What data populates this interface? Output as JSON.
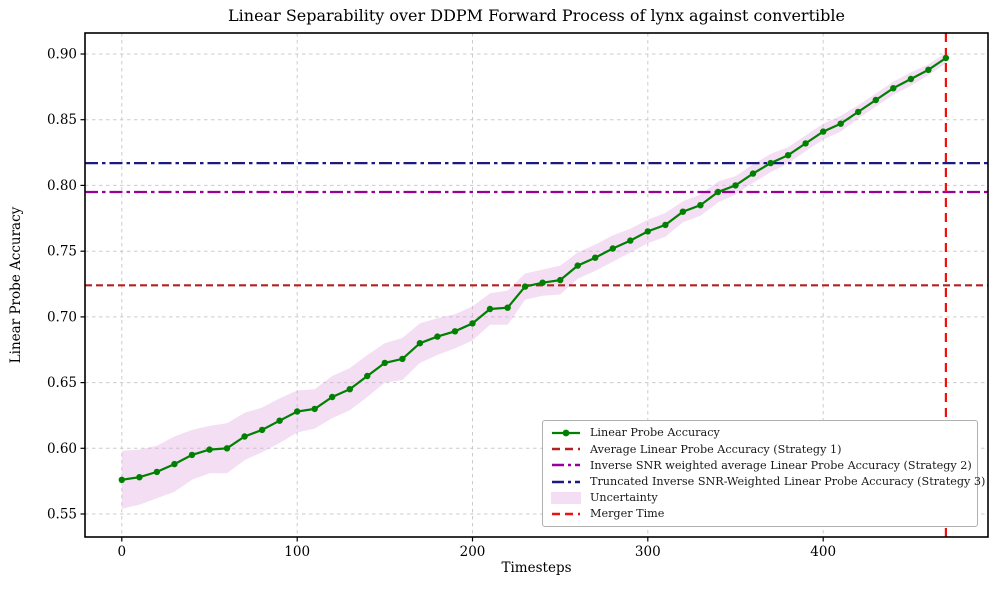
{
  "figure": {
    "title": "Linear Separability over DDPM Forward Process of lynx against convertible"
  },
  "axes": {
    "xlabel": "Timesteps",
    "ylabel": "Linear Probe Accuracy",
    "x_ticks": [
      "0",
      "100",
      "200",
      "300",
      "400"
    ],
    "y_ticks": [
      "0.55",
      "0.60",
      "0.65",
      "0.70",
      "0.75",
      "0.80",
      "0.85",
      "0.90"
    ]
  },
  "colors": {
    "accuracy_line": "#008000",
    "uncertainty_fill": "rgba(221,160,221,0.35)",
    "grid": "#cccccc",
    "axis_border": "#000000"
  },
  "legend": {
    "position": "lower right",
    "items": [
      {
        "label": "Linear Probe Accuracy",
        "swatch": "line-marker"
      },
      {
        "label": "Average Linear Probe Accuracy (Strategy 1)",
        "swatch": "dashed"
      },
      {
        "label": "Inverse SNR weighted average Linear Probe Accuracy (Strategy 2)",
        "swatch": "dashdot"
      },
      {
        "label": "Truncated Inverse SNR-Weighted Linear Probe Accuracy (Strategy 3)",
        "swatch": "dashdot"
      },
      {
        "label": "Uncertainty",
        "swatch": "patch"
      },
      {
        "label": "Merger Time",
        "swatch": "dashed"
      }
    ]
  },
  "chart_data": {
    "type": "line",
    "title": "Linear Separability over DDPM Forward Process of lynx against convertible",
    "xlabel": "Timesteps",
    "ylabel": "Linear Probe Accuracy",
    "xlim": [
      -21,
      494
    ],
    "ylim": [
      0.5325,
      0.916
    ],
    "x_tick_values": [
      0,
      100,
      200,
      300,
      400
    ],
    "y_tick_values": [
      0.55,
      0.6,
      0.65,
      0.7,
      0.75,
      0.8,
      0.85,
      0.9
    ],
    "grid": true,
    "legend_position": "lower right",
    "series": [
      {
        "name": "Linear Probe Accuracy",
        "x": [
          0,
          10,
          20,
          30,
          40,
          50,
          60,
          70,
          80,
          90,
          100,
          110,
          120,
          130,
          140,
          150,
          160,
          170,
          180,
          190,
          200,
          210,
          220,
          230,
          240,
          250,
          260,
          270,
          280,
          290,
          300,
          310,
          320,
          330,
          340,
          350,
          360,
          370,
          380,
          390,
          400,
          410,
          420,
          430,
          440,
          450,
          460,
          470
        ],
        "y": [
          0.576,
          0.578,
          0.582,
          0.588,
          0.595,
          0.599,
          0.6,
          0.609,
          0.614,
          0.621,
          0.628,
          0.63,
          0.639,
          0.645,
          0.655,
          0.665,
          0.668,
          0.68,
          0.685,
          0.689,
          0.695,
          0.706,
          0.707,
          0.723,
          0.726,
          0.728,
          0.739,
          0.745,
          0.752,
          0.758,
          0.765,
          0.77,
          0.78,
          0.785,
          0.795,
          0.8,
          0.809,
          0.817,
          0.823,
          0.832,
          0.841,
          0.847,
          0.856,
          0.865,
          0.874,
          0.881,
          0.888,
          0.897
        ],
        "uncertainty": [
          0.022,
          0.021,
          0.02,
          0.021,
          0.019,
          0.018,
          0.019,
          0.018,
          0.017,
          0.017,
          0.016,
          0.015,
          0.016,
          0.016,
          0.016,
          0.015,
          0.016,
          0.015,
          0.014,
          0.013,
          0.013,
          0.012,
          0.013,
          0.01,
          0.01,
          0.011,
          0.01,
          0.01,
          0.01,
          0.009,
          0.009,
          0.009,
          0.008,
          0.008,
          0.008,
          0.007,
          0.007,
          0.007,
          0.006,
          0.006,
          0.006,
          0.006,
          0.005,
          0.005,
          0.005,
          0.005,
          0.004,
          0.004
        ]
      }
    ],
    "hlines": [
      {
        "name": "strategy1-line",
        "label": "Average Linear Probe Accuracy (Strategy 1)",
        "y": 0.724,
        "color": "#B22222",
        "dash": "7 4"
      },
      {
        "name": "strategy2-line",
        "label": "Inverse SNR weighted average Linear Probe Accuracy (Strategy 2)",
        "y": 0.795,
        "color": "#990099",
        "dash": "13 4 3.5 4"
      },
      {
        "name": "strategy3-line",
        "label": "Truncated Inverse SNR-Weighted Linear Probe Accuracy (Strategy 3)",
        "y": 0.817,
        "color": "#1A1A80",
        "dash": "13 4 3.5 4"
      }
    ],
    "vlines": [
      {
        "name": "merger-time-line",
        "label": "Merger Time",
        "x": 470,
        "color": "#EE1111",
        "dash": "9 6"
      }
    ]
  }
}
